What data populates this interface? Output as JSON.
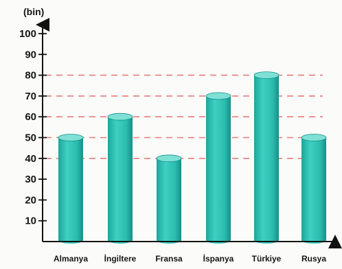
{
  "chart_data": {
    "type": "bar",
    "categories": [
      "Almanya",
      "İngiltere",
      "Fransa",
      "İspanya",
      "Türkiye",
      "Rusya"
    ],
    "values": [
      50,
      60,
      40,
      70,
      80,
      50
    ],
    "ylabel": "(bin)",
    "ylim": [
      0,
      100
    ],
    "yticks": [
      10,
      20,
      30,
      40,
      50,
      60,
      70,
      80,
      90,
      100
    ],
    "grid": false,
    "reference_lines": [
      40,
      50,
      60,
      70,
      80
    ],
    "colors": {
      "bar_front": "#2ec2b4",
      "bar_dark": "#138f86",
      "bar_top": "#7fe0d6",
      "reference_line": "#e87a7a",
      "axis": "#111111"
    }
  }
}
